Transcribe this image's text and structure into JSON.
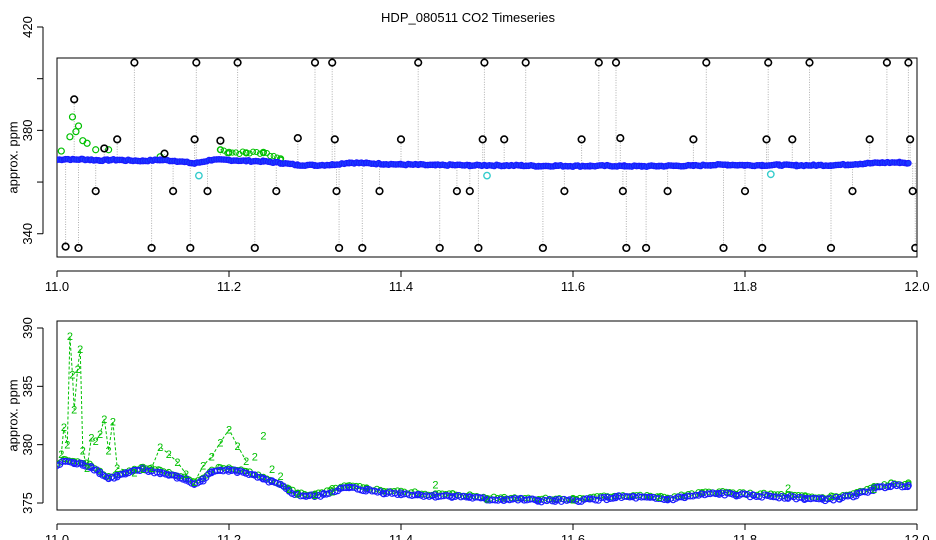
{
  "title": "HDP_080511  CO2 Timeseries",
  "colors": {
    "black": "#000000",
    "green": "#00c000",
    "blue": "#1a1aff",
    "cyan": "#33cccc",
    "gray": "#b0b0b0"
  },
  "chart_data": [
    {
      "type": "scatter",
      "ylabel": "approx. ppm",
      "xlim": [
        11.0,
        12.0
      ],
      "ylim": [
        331,
        408
      ],
      "x_ticks": [
        11.0,
        11.2,
        11.4,
        11.6,
        11.8,
        12.0
      ],
      "y_ticks": [
        340,
        360,
        380,
        400,
        420
      ],
      "y_tick_labels": [
        "340",
        "",
        "380",
        "",
        "420"
      ],
      "grid": false,
      "series": [
        {
          "marker": "blue-circle",
          "color": "blue",
          "values": [
            [
              11.0,
              368.6
            ],
            [
              11.01,
              368.9
            ],
            [
              11.02,
              368.7
            ],
            [
              11.03,
              368.8
            ],
            [
              11.04,
              368.6
            ],
            [
              11.05,
              368.4
            ],
            [
              11.06,
              368.5
            ],
            [
              11.07,
              368.6
            ],
            [
              11.08,
              368.4
            ],
            [
              11.1,
              368.2
            ],
            [
              11.12,
              368.6
            ],
            [
              11.14,
              368.1
            ],
            [
              11.16,
              367.2
            ],
            [
              11.18,
              368.6
            ],
            [
              11.2,
              368.5
            ],
            [
              11.22,
              368.2
            ],
            [
              11.24,
              368.0
            ],
            [
              11.26,
              367.4
            ],
            [
              11.28,
              366.6
            ],
            [
              11.3,
              366.5
            ],
            [
              11.32,
              366.7
            ],
            [
              11.34,
              367.5
            ],
            [
              11.36,
              367.3
            ],
            [
              11.38,
              367.0
            ],
            [
              11.4,
              366.8
            ],
            [
              11.42,
              366.7
            ],
            [
              11.44,
              366.5
            ],
            [
              11.46,
              366.6
            ],
            [
              11.48,
              366.4
            ],
            [
              11.5,
              366.5
            ],
            [
              11.52,
              366.4
            ],
            [
              11.54,
              366.4
            ],
            [
              11.56,
              366.2
            ],
            [
              11.58,
              366.3
            ],
            [
              11.6,
              366.2
            ],
            [
              11.62,
              366.2
            ],
            [
              11.64,
              366.3
            ],
            [
              11.66,
              366.2
            ],
            [
              11.68,
              366.1
            ],
            [
              11.7,
              366.2
            ],
            [
              11.72,
              366.3
            ],
            [
              11.74,
              366.3
            ],
            [
              11.76,
              366.6
            ],
            [
              11.78,
              366.7
            ],
            [
              11.8,
              366.5
            ],
            [
              11.82,
              366.5
            ],
            [
              11.84,
              366.6
            ],
            [
              11.86,
              366.4
            ],
            [
              11.88,
              366.5
            ],
            [
              11.9,
              366.5
            ],
            [
              11.92,
              366.8
            ],
            [
              11.94,
              367.2
            ],
            [
              11.96,
              367.5
            ],
            [
              11.98,
              367.6
            ],
            [
              11.99,
              367.3
            ]
          ]
        },
        {
          "marker": "green-circle",
          "color": "green",
          "values": [
            [
              11.005,
              372
            ],
            [
              11.015,
              377.5
            ],
            [
              11.018,
              385.2
            ],
            [
              11.022,
              379.5
            ],
            [
              11.025,
              381.7
            ],
            [
              11.03,
              376
            ],
            [
              11.035,
              375
            ],
            [
              11.045,
              372.5
            ],
            [
              11.06,
              372.5
            ],
            [
              11.12,
              369.8
            ],
            [
              11.19,
              372.5
            ],
            [
              11.2,
              371.5
            ],
            [
              11.22,
              371.3
            ],
            [
              11.24,
              371.5
            ],
            [
              11.26,
              369
            ]
          ]
        },
        {
          "marker": "cyan-circle",
          "color": "cyan",
          "values": [
            [
              11.165,
              362.5
            ],
            [
              11.5,
              362.5
            ],
            [
              11.83,
              363
            ]
          ]
        },
        {
          "marker": "black-circle",
          "color": "black",
          "values": [
            [
              11.01,
              335
            ],
            [
              11.02,
              392
            ],
            [
              11.025,
              334.5
            ],
            [
              11.045,
              356.5
            ],
            [
              11.055,
              373
            ],
            [
              11.07,
              376.5
            ],
            [
              11.09,
              406.2
            ],
            [
              11.11,
              334.5
            ],
            [
              11.125,
              371
            ],
            [
              11.135,
              356.5
            ],
            [
              11.155,
              334.5
            ],
            [
              11.16,
              376.5
            ],
            [
              11.162,
              406.2
            ],
            [
              11.175,
              356.5
            ],
            [
              11.19,
              376
            ],
            [
              11.21,
              406.2
            ],
            [
              11.23,
              334.5
            ],
            [
              11.255,
              356.5
            ],
            [
              11.28,
              377
            ],
            [
              11.3,
              406.2
            ],
            [
              11.32,
              406.2
            ],
            [
              11.323,
              376.5
            ],
            [
              11.325,
              356.5
            ],
            [
              11.328,
              334.5
            ],
            [
              11.355,
              334.5
            ],
            [
              11.375,
              356.5
            ],
            [
              11.4,
              376.5
            ],
            [
              11.42,
              406.2
            ],
            [
              11.445,
              334.5
            ],
            [
              11.465,
              356.5
            ],
            [
              11.48,
              356.5
            ],
            [
              11.49,
              334.5
            ],
            [
              11.495,
              376.5
            ],
            [
              11.497,
              406.2
            ],
            [
              11.52,
              376.5
            ],
            [
              11.545,
              406.2
            ],
            [
              11.565,
              334.5
            ],
            [
              11.59,
              356.5
            ],
            [
              11.61,
              376.5
            ],
            [
              11.63,
              406.2
            ],
            [
              11.65,
              406.2
            ],
            [
              11.655,
              377
            ],
            [
              11.658,
              356.5
            ],
            [
              11.662,
              334.5
            ],
            [
              11.685,
              334.5
            ],
            [
              11.71,
              356.5
            ],
            [
              11.74,
              376.5
            ],
            [
              11.755,
              406.2
            ],
            [
              11.775,
              334.5
            ],
            [
              11.8,
              356.5
            ],
            [
              11.82,
              334.5
            ],
            [
              11.825,
              376.5
            ],
            [
              11.827,
              406.2
            ],
            [
              11.855,
              376.5
            ],
            [
              11.875,
              406.2
            ],
            [
              11.9,
              334.5
            ],
            [
              11.925,
              356.5
            ],
            [
              11.945,
              376.5
            ],
            [
              11.965,
              406.2
            ],
            [
              11.99,
              406.2
            ],
            [
              11.992,
              376.5
            ],
            [
              11.995,
              356.5
            ],
            [
              11.998,
              334.5
            ]
          ]
        }
      ]
    },
    {
      "type": "scatter",
      "ylabel": "approx. ppm",
      "xlim": [
        11.0,
        12.0
      ],
      "ylim": [
        374.4,
        390.6
      ],
      "x_ticks": [
        11.0,
        11.2,
        11.4,
        11.6,
        11.8,
        12.0
      ],
      "y_ticks": [
        375,
        380,
        385,
        390
      ],
      "grid": false,
      "series": [
        {
          "marker": "blue-circle",
          "color": "blue",
          "values": [
            [
              11.0,
              378.2
            ],
            [
              11.01,
              378.6
            ],
            [
              11.02,
              378.4
            ],
            [
              11.03,
              378.3
            ],
            [
              11.04,
              378.1
            ],
            [
              11.05,
              377.6
            ],
            [
              11.06,
              377.1
            ],
            [
              11.07,
              377.3
            ],
            [
              11.08,
              377.5
            ],
            [
              11.09,
              377.7
            ],
            [
              11.1,
              377.9
            ],
            [
              11.11,
              377.7
            ],
            [
              11.12,
              377.6
            ],
            [
              11.13,
              377.4
            ],
            [
              11.14,
              377.2
            ],
            [
              11.15,
              377.0
            ],
            [
              11.16,
              376.6
            ],
            [
              11.17,
              377.0
            ],
            [
              11.18,
              377.6
            ],
            [
              11.19,
              377.9
            ],
            [
              11.2,
              377.8
            ],
            [
              11.21,
              377.7
            ],
            [
              11.22,
              377.6
            ],
            [
              11.23,
              377.3
            ],
            [
              11.24,
              377.0
            ],
            [
              11.25,
              376.8
            ],
            [
              11.26,
              376.5
            ],
            [
              11.27,
              376.0
            ],
            [
              11.28,
              375.7
            ],
            [
              11.29,
              375.6
            ],
            [
              11.3,
              375.6
            ],
            [
              11.31,
              375.7
            ],
            [
              11.32,
              376.0
            ],
            [
              11.33,
              376.2
            ],
            [
              11.34,
              376.3
            ],
            [
              11.36,
              376.1
            ],
            [
              11.38,
              375.9
            ],
            [
              11.4,
              375.8
            ],
            [
              11.42,
              375.7
            ],
            [
              11.44,
              375.6
            ],
            [
              11.46,
              375.6
            ],
            [
              11.48,
              375.5
            ],
            [
              11.5,
              375.3
            ],
            [
              11.52,
              375.3
            ],
            [
              11.54,
              375.3
            ],
            [
              11.56,
              375.2
            ],
            [
              11.58,
              375.2
            ],
            [
              11.6,
              375.2
            ],
            [
              11.62,
              375.3
            ],
            [
              11.64,
              375.4
            ],
            [
              11.65,
              375.5
            ],
            [
              11.67,
              375.5
            ],
            [
              11.69,
              375.4
            ],
            [
              11.71,
              375.3
            ],
            [
              11.73,
              375.5
            ],
            [
              11.75,
              375.7
            ],
            [
              11.77,
              375.8
            ],
            [
              11.79,
              375.7
            ],
            [
              11.81,
              375.6
            ],
            [
              11.83,
              375.6
            ],
            [
              11.85,
              375.5
            ],
            [
              11.87,
              375.4
            ],
            [
              11.89,
              375.3
            ],
            [
              11.91,
              375.4
            ],
            [
              11.93,
              375.7
            ],
            [
              11.95,
              376.2
            ],
            [
              11.97,
              376.5
            ],
            [
              11.99,
              376.5
            ]
          ]
        },
        {
          "marker": "green-2",
          "label": "2",
          "color": "green",
          "values": [
            [
              11.005,
              379.2
            ],
            [
              11.008,
              381.5
            ],
            [
              11.012,
              380.0
            ],
            [
              11.015,
              389.3
            ],
            [
              11.018,
              386.0
            ],
            [
              11.02,
              383.0
            ],
            [
              11.024,
              386.5
            ],
            [
              11.027,
              388.2
            ],
            [
              11.03,
              379.5
            ],
            [
              11.035,
              378.0
            ],
            [
              11.04,
              380.6
            ],
            [
              11.045,
              380.3
            ],
            [
              11.05,
              380.9
            ],
            [
              11.055,
              382.2
            ],
            [
              11.06,
              379.5
            ],
            [
              11.065,
              382.0
            ],
            [
              11.07,
              378.0
            ],
            [
              11.09,
              377.6
            ],
            [
              11.1,
              377.9
            ],
            [
              11.11,
              378.0
            ],
            [
              11.12,
              379.8
            ],
            [
              11.13,
              379.2
            ],
            [
              11.14,
              378.5
            ],
            [
              11.15,
              377.5
            ],
            [
              11.16,
              376.8
            ],
            [
              11.17,
              378.2
            ],
            [
              11.18,
              379.0
            ],
            [
              11.19,
              380.2
            ],
            [
              11.2,
              381.3
            ],
            [
              11.21,
              379.9
            ],
            [
              11.22,
              378.6
            ],
            [
              11.23,
              379.0
            ],
            [
              11.24,
              380.8
            ],
            [
              11.25,
              377.9
            ],
            [
              11.26,
              377.3
            ],
            [
              11.27,
              376.2
            ],
            [
              11.28,
              375.8
            ],
            [
              11.3,
              375.7
            ],
            [
              11.32,
              376.0
            ],
            [
              11.44,
              376.6
            ],
            [
              11.5,
              375.4
            ],
            [
              11.6,
              375.3
            ],
            [
              11.7,
              375.5
            ],
            [
              11.85,
              376.3
            ],
            [
              11.9,
              375.6
            ],
            [
              11.95,
              376.2
            ]
          ]
        }
      ]
    }
  ]
}
